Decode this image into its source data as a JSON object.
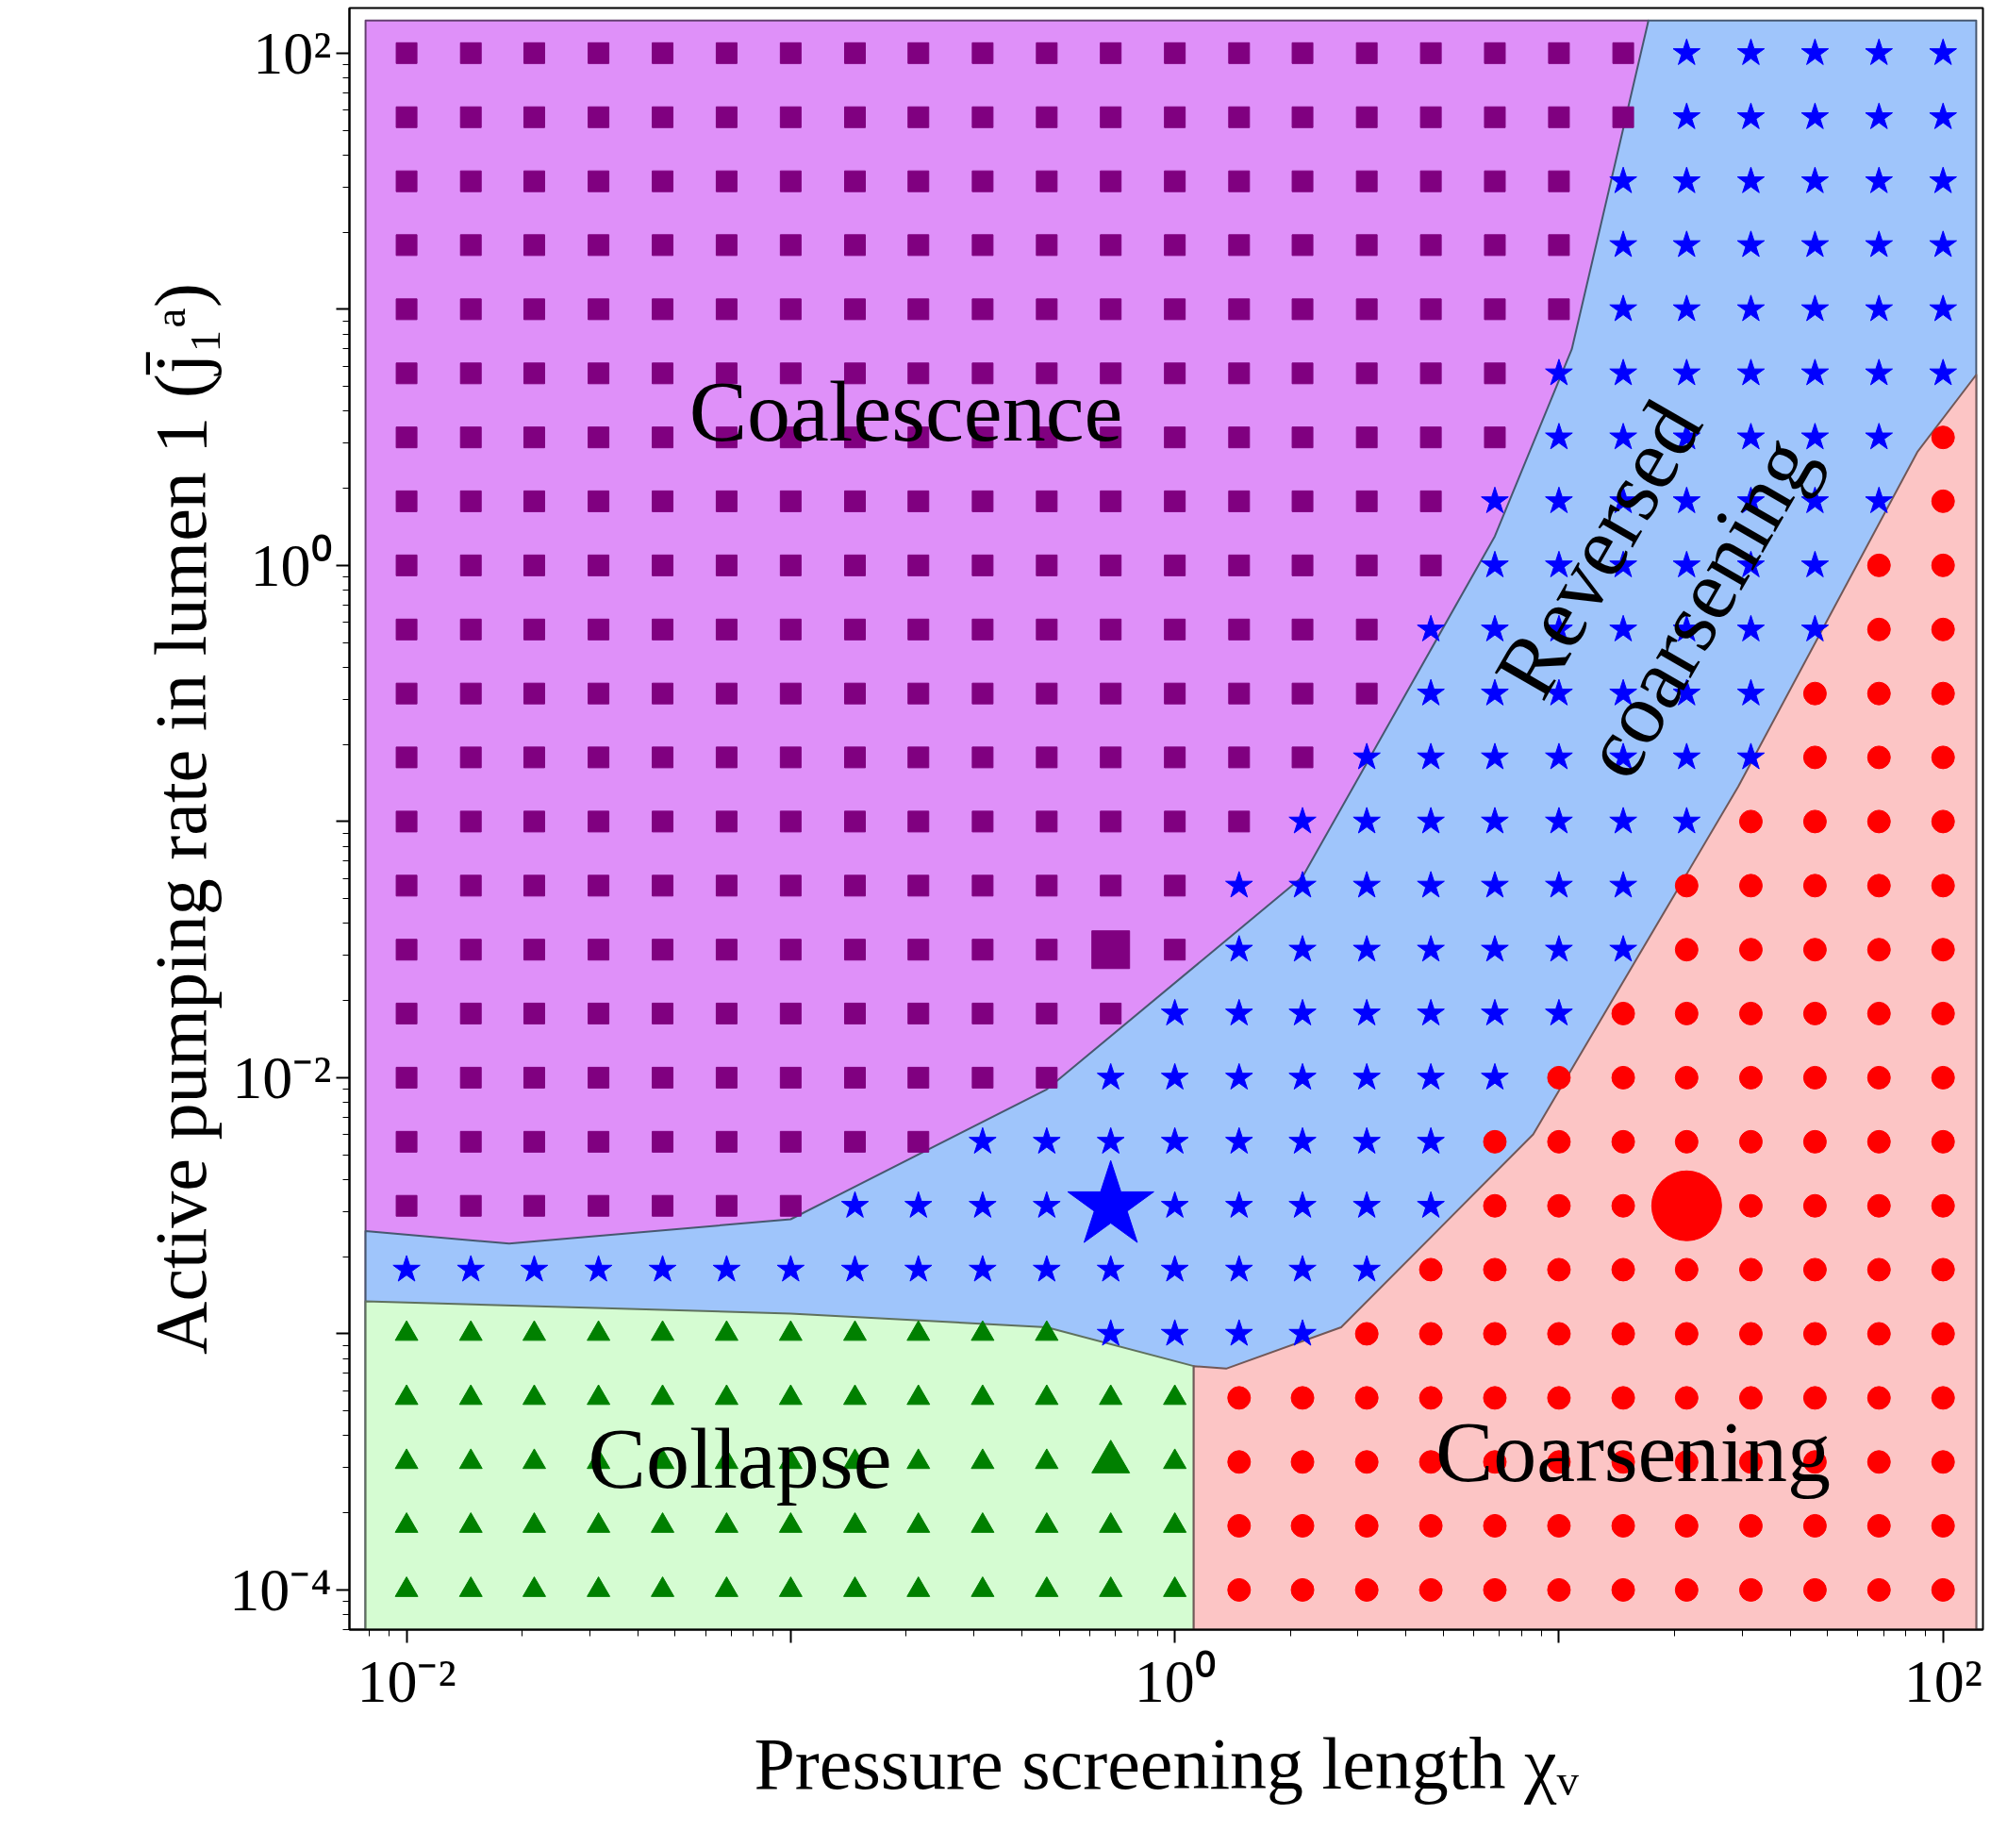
{
  "chart_data": {
    "type": "scatter",
    "xlabel": "Pressure screening length χᵥ",
    "ylabel": "Active pumping rate in lumen 1 (j̄₁ᵃ)",
    "log": "xy",
    "grid": false,
    "legend": false,
    "xlim": [
      0.0071,
      127
    ],
    "ylim": [
      7e-05,
      150
    ],
    "xticks": [
      {
        "value": 0.01,
        "label": "10⁻²"
      },
      {
        "value": 0.1,
        "label": null
      },
      {
        "value": 1,
        "label": "10⁰"
      },
      {
        "value": 10,
        "label": null
      },
      {
        "value": 100,
        "label": "10²"
      }
    ],
    "yticks": [
      {
        "value": 0.0001,
        "label": "10⁻⁴"
      },
      {
        "value": 0.001,
        "label": null
      },
      {
        "value": 0.01,
        "label": "10⁻²"
      },
      {
        "value": 0.1,
        "label": null
      },
      {
        "value": 1,
        "label": "10⁰"
      },
      {
        "value": 10,
        "label": null
      },
      {
        "value": 100,
        "label": "10²"
      }
    ],
    "annotations": [
      "Coalescence",
      "Reversed\ncoarsening",
      "Collapse",
      "Coarsening"
    ],
    "series": [
      {
        "type": "area",
        "color": "#df90f9",
        "x": [
          0.00782,
          17.1
        ],
        "values": [
          134,
          134
        ]
      },
      {
        "type": "area",
        "color": "#9fc5fb",
        "x": [
          0.00782,
          0.0185,
          0.1,
          0.464,
          2.15,
          6.81,
          10.8,
          17.1,
          122
        ],
        "values": [
          0.00252,
          0.00225,
          0.0028,
          0.009,
          0.0608,
          1.3,
          6.98,
          134,
          134
        ]
      },
      {
        "type": "area",
        "color": "#d5fcd2",
        "x": [
          0.00782,
          0.1,
          0.464,
          1.12
        ],
        "values": [
          0.00134,
          0.0012,
          0.00106,
          0.000748
        ]
      },
      {
        "type": "area",
        "color": "#fcc5c5",
        "x": [
          1.12,
          1.36,
          2.71,
          8.57,
          29.3,
          85.7,
          122
        ],
        "values": [
          0.000748,
          0.000731,
          0.00106,
          0.00601,
          0.137,
          2.77,
          5.55
        ]
      },
      {
        "marker": "square",
        "color": "#800080",
        "x": [
          0.01,
          0.0147,
          0.0215,
          0.0316,
          0.0464,
          0.0681,
          0.1,
          0.147,
          0.215,
          0.316,
          0.464,
          0.681,
          1,
          1.47,
          2.15,
          3.16,
          4.64,
          6.81,
          10,
          14.7,
          0.01,
          0.0147,
          0.0215,
          0.0316,
          0.0464,
          0.0681,
          0.1,
          0.147,
          0.215,
          0.316,
          0.464,
          0.681,
          1,
          1.47,
          2.15,
          3.16,
          4.64,
          6.81,
          10,
          14.7,
          0.01,
          0.0147,
          0.0215,
          0.0316,
          0.0464,
          0.0681,
          0.1,
          0.147,
          0.215,
          0.316,
          0.464,
          0.681,
          1,
          1.47,
          2.15,
          3.16,
          4.64,
          6.81,
          10,
          0.01,
          0.0147,
          0.0215,
          0.0316,
          0.0464,
          0.0681,
          0.1,
          0.147,
          0.215,
          0.316,
          0.464,
          0.681,
          1,
          1.47,
          2.15,
          3.16,
          4.64,
          6.81,
          10,
          0.01,
          0.0147,
          0.0215,
          0.0316,
          0.0464,
          0.0681,
          0.1,
          0.147,
          0.215,
          0.316,
          0.464,
          0.681,
          1,
          1.47,
          2.15,
          3.16,
          4.64,
          6.81,
          10,
          0.01,
          0.0147,
          0.0215,
          0.0316,
          0.0464,
          0.0681,
          0.1,
          0.147,
          0.215,
          0.316,
          0.464,
          0.681,
          1,
          1.47,
          2.15,
          3.16,
          4.64,
          6.81,
          0.01,
          0.0147,
          0.0215,
          0.0316,
          0.0464,
          0.0681,
          0.1,
          0.147,
          0.215,
          0.316,
          0.464,
          0.681,
          1,
          1.47,
          2.15,
          3.16,
          4.64,
          6.81,
          0.01,
          0.0147,
          0.0215,
          0.0316,
          0.0464,
          0.0681,
          0.1,
          0.147,
          0.215,
          0.316,
          0.464,
          0.681,
          1,
          1.47,
          2.15,
          3.16,
          4.64,
          0.01,
          0.0147,
          0.0215,
          0.0316,
          0.0464,
          0.0681,
          0.1,
          0.147,
          0.215,
          0.316,
          0.464,
          0.681,
          1,
          1.47,
          2.15,
          3.16,
          4.64,
          0.01,
          0.0147,
          0.0215,
          0.0316,
          0.0464,
          0.0681,
          0.1,
          0.147,
          0.215,
          0.316,
          0.464,
          0.681,
          1,
          1.47,
          2.15,
          3.16,
          0.01,
          0.0147,
          0.0215,
          0.0316,
          0.0464,
          0.0681,
          0.1,
          0.147,
          0.215,
          0.316,
          0.464,
          0.681,
          1,
          1.47,
          2.15,
          3.16,
          0.01,
          0.0147,
          0.0215,
          0.0316,
          0.0464,
          0.0681,
          0.1,
          0.147,
          0.215,
          0.316,
          0.464,
          0.681,
          1,
          1.47,
          2.15,
          0.01,
          0.0147,
          0.0215,
          0.0316,
          0.0464,
          0.0681,
          0.1,
          0.147,
          0.215,
          0.316,
          0.464,
          0.681,
          1,
          1.47,
          0.01,
          0.0147,
          0.0215,
          0.0316,
          0.0464,
          0.0681,
          0.1,
          0.147,
          0.215,
          0.316,
          0.464,
          0.681,
          1,
          0.01,
          0.0147,
          0.0215,
          0.0316,
          0.0464,
          0.0681,
          0.1,
          0.147,
          0.215,
          0.316,
          0.464,
          1,
          0.01,
          0.0147,
          0.0215,
          0.0316,
          0.0464,
          0.0681,
          0.1,
          0.147,
          0.215,
          0.316,
          0.464,
          0.681,
          0.01,
          0.0147,
          0.0215,
          0.0316,
          0.0464,
          0.0681,
          0.1,
          0.147,
          0.215,
          0.316,
          0.464,
          0.01,
          0.0147,
          0.0215,
          0.0316,
          0.0464,
          0.0681,
          0.1,
          0.147,
          0.215,
          0.01,
          0.0147,
          0.0215,
          0.0316,
          0.0464,
          0.0681,
          0.1
        ],
        "values": [
          100,
          100,
          100,
          100,
          100,
          100,
          100,
          100,
          100,
          100,
          100,
          100,
          100,
          100,
          100,
          100,
          100,
          100,
          100,
          100,
          56.2,
          56.2,
          56.2,
          56.2,
          56.2,
          56.2,
          56.2,
          56.2,
          56.2,
          56.2,
          56.2,
          56.2,
          56.2,
          56.2,
          56.2,
          56.2,
          56.2,
          56.2,
          56.2,
          56.2,
          31.6,
          31.6,
          31.6,
          31.6,
          31.6,
          31.6,
          31.6,
          31.6,
          31.6,
          31.6,
          31.6,
          31.6,
          31.6,
          31.6,
          31.6,
          31.6,
          31.6,
          31.6,
          31.6,
          17.8,
          17.8,
          17.8,
          17.8,
          17.8,
          17.8,
          17.8,
          17.8,
          17.8,
          17.8,
          17.8,
          17.8,
          17.8,
          17.8,
          17.8,
          17.8,
          17.8,
          17.8,
          17.8,
          10,
          10,
          10,
          10,
          10,
          10,
          10,
          10,
          10,
          10,
          10,
          10,
          10,
          10,
          10,
          10,
          10,
          10,
          10,
          5.62,
          5.62,
          5.62,
          5.62,
          5.62,
          5.62,
          5.62,
          5.62,
          5.62,
          5.62,
          5.62,
          5.62,
          5.62,
          5.62,
          5.62,
          5.62,
          5.62,
          5.62,
          3.16,
          3.16,
          3.16,
          3.16,
          3.16,
          3.16,
          3.16,
          3.16,
          3.16,
          3.16,
          3.16,
          3.16,
          3.16,
          3.16,
          3.16,
          3.16,
          3.16,
          3.16,
          1.78,
          1.78,
          1.78,
          1.78,
          1.78,
          1.78,
          1.78,
          1.78,
          1.78,
          1.78,
          1.78,
          1.78,
          1.78,
          1.78,
          1.78,
          1.78,
          1.78,
          1,
          1,
          1,
          1,
          1,
          1,
          1,
          1,
          1,
          1,
          1,
          1,
          1,
          1,
          1,
          1,
          1,
          0.562,
          0.562,
          0.562,
          0.562,
          0.562,
          0.562,
          0.562,
          0.562,
          0.562,
          0.562,
          0.562,
          0.562,
          0.562,
          0.562,
          0.562,
          0.562,
          0.316,
          0.316,
          0.316,
          0.316,
          0.316,
          0.316,
          0.316,
          0.316,
          0.316,
          0.316,
          0.316,
          0.316,
          0.316,
          0.316,
          0.316,
          0.316,
          0.178,
          0.178,
          0.178,
          0.178,
          0.178,
          0.178,
          0.178,
          0.178,
          0.178,
          0.178,
          0.178,
          0.178,
          0.178,
          0.178,
          0.178,
          0.1,
          0.1,
          0.1,
          0.1,
          0.1,
          0.1,
          0.1,
          0.1,
          0.1,
          0.1,
          0.1,
          0.1,
          0.1,
          0.1,
          0.0562,
          0.0562,
          0.0562,
          0.0562,
          0.0562,
          0.0562,
          0.0562,
          0.0562,
          0.0562,
          0.0562,
          0.0562,
          0.0562,
          0.0562,
          0.0316,
          0.0316,
          0.0316,
          0.0316,
          0.0316,
          0.0316,
          0.0316,
          0.0316,
          0.0316,
          0.0316,
          0.0316,
          0.0316,
          0.0178,
          0.0178,
          0.0178,
          0.0178,
          0.0178,
          0.0178,
          0.0178,
          0.0178,
          0.0178,
          0.0178,
          0.0178,
          0.0178,
          0.01,
          0.01,
          0.01,
          0.01,
          0.01,
          0.01,
          0.01,
          0.01,
          0.01,
          0.01,
          0.01,
          0.00562,
          0.00562,
          0.00562,
          0.00562,
          0.00562,
          0.00562,
          0.00562,
          0.00562,
          0.00562,
          0.00316,
          0.00316,
          0.00316,
          0.00316,
          0.00316,
          0.00316,
          0.00316
        ]
      },
      {
        "marker": "star",
        "color": "#0000ff",
        "x": [
          21.5,
          31.6,
          46.4,
          68.1,
          100,
          21.5,
          31.6,
          46.4,
          68.1,
          100,
          14.7,
          21.5,
          31.6,
          46.4,
          68.1,
          100,
          14.7,
          21.5,
          31.6,
          46.4,
          68.1,
          100,
          14.7,
          21.5,
          31.6,
          46.4,
          68.1,
          100,
          10,
          14.7,
          21.5,
          31.6,
          46.4,
          68.1,
          100,
          10,
          14.7,
          21.5,
          31.6,
          46.4,
          68.1,
          6.81,
          10,
          14.7,
          21.5,
          31.6,
          46.4,
          68.1,
          6.81,
          10,
          14.7,
          21.5,
          31.6,
          46.4,
          4.64,
          6.81,
          10,
          14.7,
          21.5,
          31.6,
          46.4,
          4.64,
          6.81,
          10,
          14.7,
          21.5,
          31.6,
          3.16,
          4.64,
          6.81,
          10,
          14.7,
          21.5,
          31.6,
          2.15,
          3.16,
          4.64,
          6.81,
          10,
          14.7,
          21.5,
          1.47,
          2.15,
          3.16,
          4.64,
          6.81,
          10,
          14.7,
          1.47,
          2.15,
          3.16,
          4.64,
          6.81,
          10,
          14.7,
          1,
          1.47,
          2.15,
          3.16,
          4.64,
          6.81,
          10,
          0.681,
          1,
          1.47,
          2.15,
          3.16,
          4.64,
          6.81,
          0.316,
          0.464,
          0.681,
          1,
          1.47,
          2.15,
          3.16,
          4.64,
          0.147,
          0.215,
          0.316,
          0.464,
          1,
          1.47,
          2.15,
          3.16,
          4.64,
          0.01,
          0.0147,
          0.0215,
          0.0316,
          0.0464,
          0.0681,
          0.1,
          0.147,
          0.215,
          0.316,
          0.464,
          0.681,
          1,
          1.47,
          2.15,
          3.16,
          0.681,
          1,
          1.47,
          2.15
        ],
        "values": [
          100,
          100,
          100,
          100,
          100,
          56.2,
          56.2,
          56.2,
          56.2,
          56.2,
          31.6,
          31.6,
          31.6,
          31.6,
          31.6,
          31.6,
          17.8,
          17.8,
          17.8,
          17.8,
          17.8,
          17.8,
          10,
          10,
          10,
          10,
          10,
          10,
          5.62,
          5.62,
          5.62,
          5.62,
          5.62,
          5.62,
          5.62,
          3.16,
          3.16,
          3.16,
          3.16,
          3.16,
          3.16,
          1.78,
          1.78,
          1.78,
          1.78,
          1.78,
          1.78,
          1.78,
          1,
          1,
          1,
          1,
          1,
          1,
          0.562,
          0.562,
          0.562,
          0.562,
          0.562,
          0.562,
          0.562,
          0.316,
          0.316,
          0.316,
          0.316,
          0.316,
          0.316,
          0.178,
          0.178,
          0.178,
          0.178,
          0.178,
          0.178,
          0.178,
          0.1,
          0.1,
          0.1,
          0.1,
          0.1,
          0.1,
          0.1,
          0.0562,
          0.0562,
          0.0562,
          0.0562,
          0.0562,
          0.0562,
          0.0562,
          0.0316,
          0.0316,
          0.0316,
          0.0316,
          0.0316,
          0.0316,
          0.0316,
          0.0178,
          0.0178,
          0.0178,
          0.0178,
          0.0178,
          0.0178,
          0.0178,
          0.01,
          0.01,
          0.01,
          0.01,
          0.01,
          0.01,
          0.01,
          0.00562,
          0.00562,
          0.00562,
          0.00562,
          0.00562,
          0.00562,
          0.00562,
          0.00562,
          0.00316,
          0.00316,
          0.00316,
          0.00316,
          0.00316,
          0.00316,
          0.00316,
          0.00316,
          0.00316,
          0.00178,
          0.00178,
          0.00178,
          0.00178,
          0.00178,
          0.00178,
          0.00178,
          0.00178,
          0.00178,
          0.00178,
          0.00178,
          0.00178,
          0.00178,
          0.00178,
          0.00178,
          0.00178,
          0.001,
          0.001,
          0.001,
          0.001
        ]
      },
      {
        "marker": "circle",
        "color": "#ff0000",
        "x": [
          100,
          100,
          68.1,
          100,
          68.1,
          100,
          46.4,
          68.1,
          100,
          46.4,
          68.1,
          100,
          31.6,
          46.4,
          68.1,
          100,
          21.5,
          31.6,
          46.4,
          68.1,
          100,
          21.5,
          31.6,
          46.4,
          68.1,
          100,
          14.7,
          21.5,
          31.6,
          46.4,
          68.1,
          100,
          10,
          14.7,
          21.5,
          31.6,
          46.4,
          68.1,
          100,
          6.81,
          10,
          14.7,
          21.5,
          31.6,
          46.4,
          68.1,
          100,
          6.81,
          10,
          14.7,
          31.6,
          46.4,
          68.1,
          100,
          4.64,
          6.81,
          10,
          14.7,
          21.5,
          31.6,
          46.4,
          68.1,
          100,
          3.16,
          4.64,
          6.81,
          10,
          14.7,
          21.5,
          31.6,
          46.4,
          68.1,
          100,
          1.47,
          2.15,
          3.16,
          4.64,
          6.81,
          10,
          14.7,
          21.5,
          31.6,
          46.4,
          68.1,
          100,
          1.47,
          2.15,
          3.16,
          4.64,
          6.81,
          10,
          14.7,
          21.5,
          31.6,
          46.4,
          68.1,
          100,
          1.47,
          2.15,
          3.16,
          4.64,
          6.81,
          10,
          14.7,
          21.5,
          31.6,
          46.4,
          68.1,
          100,
          1.47,
          2.15,
          3.16,
          4.64,
          6.81,
          10,
          14.7,
          21.5,
          31.6,
          46.4,
          68.1,
          100
        ],
        "values": [
          3.16,
          1.78,
          1,
          1,
          0.562,
          0.562,
          0.316,
          0.316,
          0.316,
          0.178,
          0.178,
          0.178,
          0.1,
          0.1,
          0.1,
          0.1,
          0.0562,
          0.0562,
          0.0562,
          0.0562,
          0.0562,
          0.0316,
          0.0316,
          0.0316,
          0.0316,
          0.0316,
          0.0178,
          0.0178,
          0.0178,
          0.0178,
          0.0178,
          0.0178,
          0.01,
          0.01,
          0.01,
          0.01,
          0.01,
          0.01,
          0.01,
          0.00562,
          0.00562,
          0.00562,
          0.00562,
          0.00562,
          0.00562,
          0.00562,
          0.00562,
          0.00316,
          0.00316,
          0.00316,
          0.00316,
          0.00316,
          0.00316,
          0.00316,
          0.00178,
          0.00178,
          0.00178,
          0.00178,
          0.00178,
          0.00178,
          0.00178,
          0.00178,
          0.00178,
          0.001,
          0.001,
          0.001,
          0.001,
          0.001,
          0.001,
          0.001,
          0.001,
          0.001,
          0.001,
          0.000562,
          0.000562,
          0.000562,
          0.000562,
          0.000562,
          0.000562,
          0.000562,
          0.000562,
          0.000562,
          0.000562,
          0.000562,
          0.000562,
          0.000316,
          0.000316,
          0.000316,
          0.000316,
          0.000316,
          0.000316,
          0.000316,
          0.000316,
          0.000316,
          0.000316,
          0.000316,
          0.000316,
          0.000178,
          0.000178,
          0.000178,
          0.000178,
          0.000178,
          0.000178,
          0.000178,
          0.000178,
          0.000178,
          0.000178,
          0.000178,
          0.000178,
          0.0001,
          0.0001,
          0.0001,
          0.0001,
          0.0001,
          0.0001,
          0.0001,
          0.0001,
          0.0001,
          0.0001,
          0.0001,
          0.0001
        ]
      },
      {
        "marker": "triangle",
        "color": "#008000",
        "x": [
          0.01,
          0.0147,
          0.0215,
          0.0316,
          0.0464,
          0.0681,
          0.1,
          0.147,
          0.215,
          0.316,
          0.464,
          0.01,
          0.0147,
          0.0215,
          0.0316,
          0.0464,
          0.0681,
          0.1,
          0.147,
          0.215,
          0.316,
          0.464,
          0.681,
          1,
          0.01,
          0.0147,
          0.0215,
          0.0316,
          0.0464,
          0.0681,
          0.1,
          0.147,
          0.215,
          0.316,
          0.464,
          1,
          0.01,
          0.0147,
          0.0215,
          0.0316,
          0.0464,
          0.0681,
          0.1,
          0.147,
          0.215,
          0.316,
          0.464,
          0.681,
          1,
          0.01,
          0.0147,
          0.0215,
          0.0316,
          0.0464,
          0.0681,
          0.1,
          0.147,
          0.215,
          0.316,
          0.464,
          0.681,
          1
        ],
        "values": [
          0.001,
          0.001,
          0.001,
          0.001,
          0.001,
          0.001,
          0.001,
          0.001,
          0.001,
          0.001,
          0.001,
          0.000562,
          0.000562,
          0.000562,
          0.000562,
          0.000562,
          0.000562,
          0.000562,
          0.000562,
          0.000562,
          0.000562,
          0.000562,
          0.000562,
          0.000562,
          0.000316,
          0.000316,
          0.000316,
          0.000316,
          0.000316,
          0.000316,
          0.000316,
          0.000316,
          0.000316,
          0.000316,
          0.000316,
          0.000316,
          0.000178,
          0.000178,
          0.000178,
          0.000178,
          0.000178,
          0.000178,
          0.000178,
          0.000178,
          0.000178,
          0.000178,
          0.000178,
          0.000178,
          0.000178,
          0.0001,
          0.0001,
          0.0001,
          0.0001,
          0.0001,
          0.0001,
          0.0001,
          0.0001,
          0.0001,
          0.0001,
          0.0001,
          0.0001,
          0.0001
        ]
      },
      {
        "marker": "square",
        "color": "#800080",
        "x": [
          0.681
        ],
        "values": [
          0.0316
        ]
      },
      {
        "marker": "star",
        "color": "#0000ff",
        "x": [
          0.681
        ],
        "values": [
          0.00316
        ]
      },
      {
        "marker": "circle",
        "color": "#ff0000",
        "x": [
          21.5
        ],
        "values": [
          0.00316
        ]
      },
      {
        "marker": "triangle",
        "color": "#008000",
        "x": [
          0.681
        ],
        "values": [
          0.000316
        ]
      }
    ]
  }
}
